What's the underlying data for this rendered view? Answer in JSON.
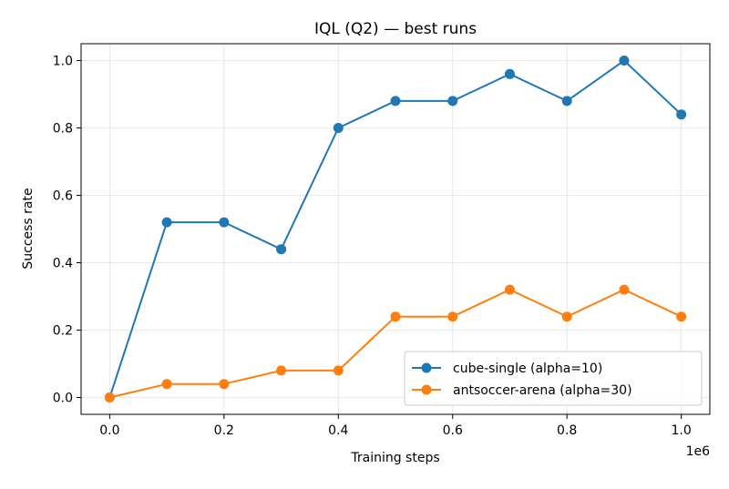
{
  "chart_data": {
    "type": "line",
    "title": "IQL (Q2) — best runs",
    "xlabel": "Training steps",
    "ylabel": "Success rate",
    "x_offset_label": "1e6",
    "x": [
      0,
      100000,
      200000,
      300000,
      400000,
      500000,
      600000,
      700000,
      800000,
      900000,
      1000000
    ],
    "xlim": [
      -50000,
      1050000
    ],
    "ylim": [
      -0.05,
      1.05
    ],
    "xticks": [
      0,
      200000,
      400000,
      600000,
      800000,
      1000000
    ],
    "xtick_labels": [
      "0.0",
      "0.2",
      "0.4",
      "0.6",
      "0.8",
      "1.0"
    ],
    "yticks": [
      0,
      0.2,
      0.4,
      0.6,
      0.8,
      1.0
    ],
    "ytick_labels": [
      "0.0",
      "0.2",
      "0.4",
      "0.6",
      "0.8",
      "1.0"
    ],
    "grid": true,
    "legend_position": "lower-right",
    "series": [
      {
        "name": "cube-single (alpha=10)",
        "color": "#1f77b4",
        "marker": "circle",
        "values": [
          0.0,
          0.52,
          0.52,
          0.44,
          0.8,
          0.88,
          0.88,
          0.96,
          0.88,
          1.0,
          0.84
        ]
      },
      {
        "name": "antsoccer-arena (alpha=30)",
        "color": "#ff7f0e",
        "marker": "circle",
        "values": [
          0.0,
          0.04,
          0.04,
          0.08,
          0.08,
          0.24,
          0.24,
          0.32,
          0.24,
          0.32,
          0.24
        ]
      }
    ]
  }
}
